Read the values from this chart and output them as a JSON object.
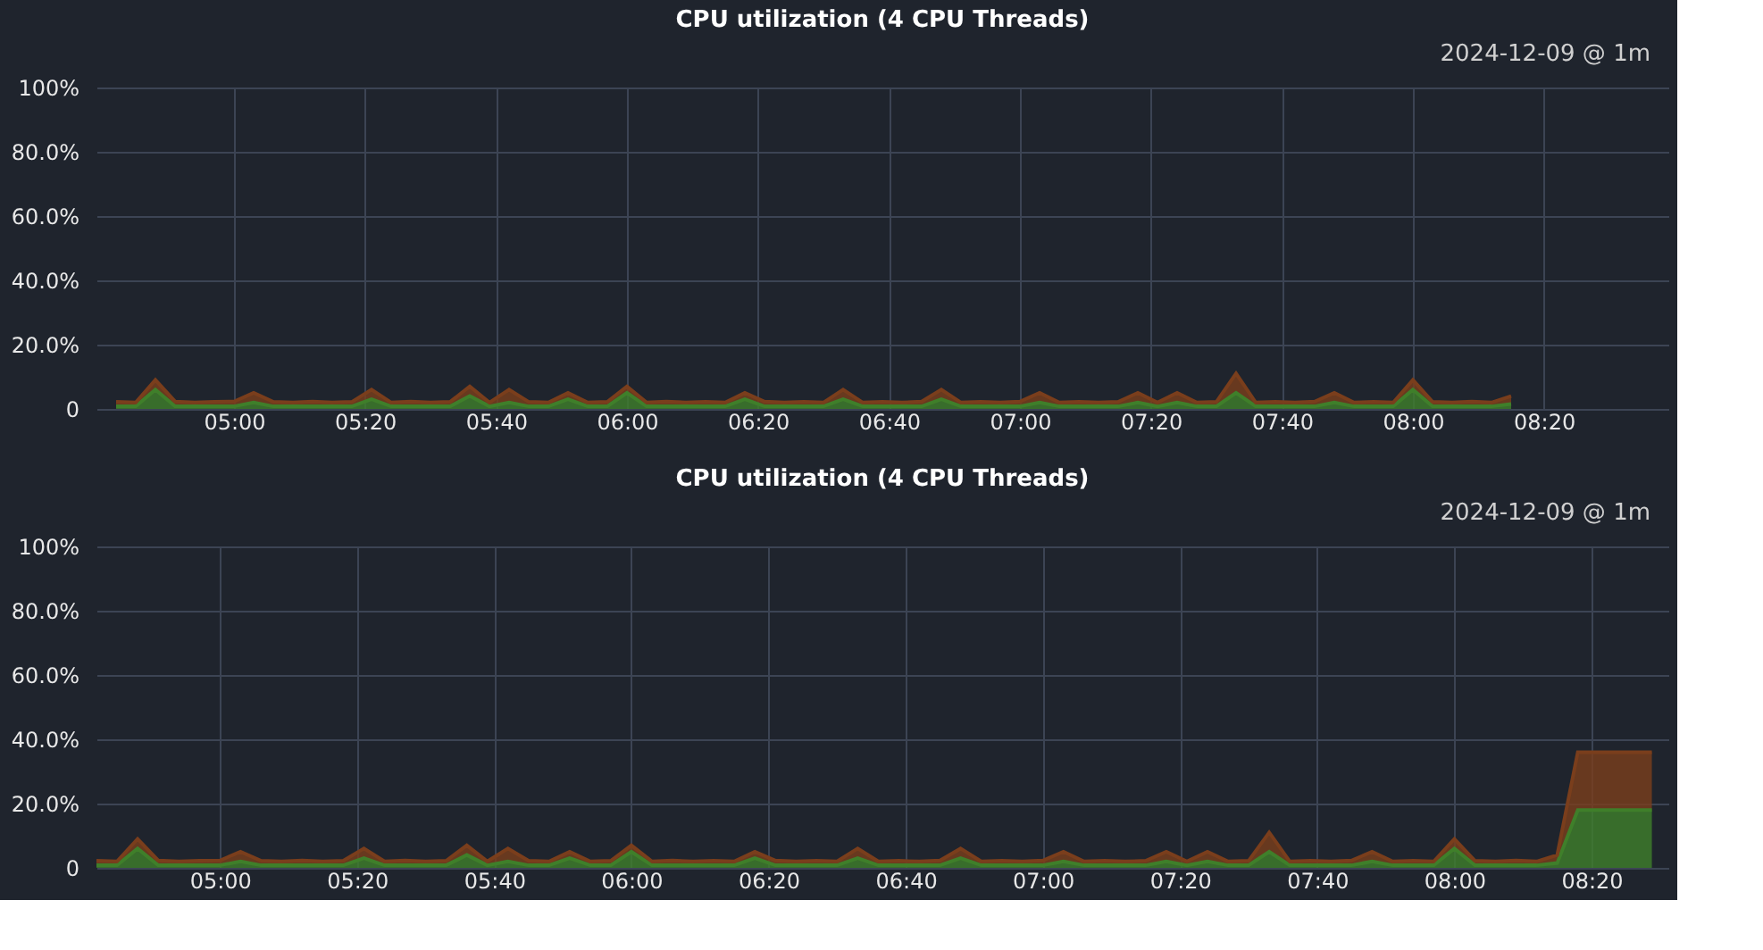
{
  "chart_data": [
    {
      "type": "area",
      "title": "CPU utilization (4 CPU Threads)",
      "annotations": [
        "2024-12-09 @ 1m"
      ],
      "stacked": true,
      "legend": false,
      "grid": true,
      "x": [
        4.7,
        4.75,
        4.8,
        4.85,
        4.9,
        4.95,
        5.0,
        5.05,
        5.1,
        5.15,
        5.2,
        5.25,
        5.3,
        5.35,
        5.4,
        5.45,
        5.5,
        5.55,
        5.6,
        5.65,
        5.7,
        5.75,
        5.8,
        5.85,
        5.9,
        5.95,
        6.0,
        6.05,
        6.1,
        6.15,
        6.2,
        6.25,
        6.3,
        6.35,
        6.4,
        6.45,
        6.5,
        6.55,
        6.6,
        6.65,
        6.7,
        6.75,
        6.8,
        6.85,
        6.9,
        6.95,
        7.0,
        7.05,
        7.1,
        7.15,
        7.2,
        7.25,
        7.3,
        7.35,
        7.4,
        7.45,
        7.5,
        7.55,
        7.6,
        7.65,
        7.7,
        7.75,
        7.8,
        7.85,
        7.9,
        7.95,
        8.0,
        8.05,
        8.1,
        8.15,
        8.2,
        8.25
      ],
      "series": [
        {
          "color": "#3f7f2a",
          "values": [
            0.8,
            0.8,
            6,
            0.8,
            0.8,
            0.8,
            0.8,
            2,
            0.8,
            0.8,
            0.8,
            0.8,
            0.8,
            3,
            0.8,
            0.8,
            0.8,
            0.8,
            4,
            0.8,
            2,
            0.8,
            0.8,
            3,
            0.8,
            0.8,
            5,
            0.8,
            0.8,
            0.8,
            0.8,
            0.8,
            3,
            0.8,
            0.8,
            0.8,
            0.8,
            3,
            0.8,
            0.8,
            0.8,
            0.8,
            3,
            0.8,
            0.8,
            0.8,
            0.8,
            2,
            0.8,
            0.8,
            0.8,
            0.8,
            2,
            0.8,
            2,
            0.8,
            0.8,
            5,
            0.8,
            0.8,
            0.8,
            0.8,
            2,
            0.8,
            0.8,
            0.8,
            6,
            0.8,
            0.8,
            0.8,
            0.8,
            1.5
          ]
        },
        {
          "color": "#7a3e1c",
          "values": [
            1.4,
            1.2,
            3,
            1.5,
            1.2,
            1.4,
            1.5,
            3,
            1.4,
            1.2,
            1.5,
            1.2,
            1.4,
            3,
            1.2,
            1.5,
            1.2,
            1.4,
            3,
            1.2,
            4,
            1.4,
            1.2,
            2,
            1.2,
            1.4,
            2,
            1.2,
            1.5,
            1.2,
            1.4,
            1.2,
            2,
            1.5,
            1.2,
            1.4,
            1.2,
            3,
            1.2,
            1.4,
            1.2,
            1.5,
            3,
            1.2,
            1.4,
            1.2,
            1.5,
            3,
            1.2,
            1.4,
            1.2,
            1.4,
            3,
            1.2,
            3,
            1.2,
            1.4,
            6,
            1.2,
            1.4,
            1.2,
            1.5,
            3,
            1.2,
            1.4,
            1.2,
            3,
            1.4,
            1.2,
            1.5,
            1.2,
            2.5
          ]
        }
      ],
      "xlim": [
        4.65,
        8.65
      ],
      "ylim": [
        0,
        100
      ],
      "xticks": [
        {
          "value": 5,
          "label": "05:00"
        },
        {
          "value": 5.3333,
          "label": "05:20"
        },
        {
          "value": 5.6667,
          "label": "05:40"
        },
        {
          "value": 6,
          "label": "06:00"
        },
        {
          "value": 6.3333,
          "label": "06:20"
        },
        {
          "value": 6.6667,
          "label": "06:40"
        },
        {
          "value": 7,
          "label": "07:00"
        },
        {
          "value": 7.3333,
          "label": "07:20"
        },
        {
          "value": 7.6667,
          "label": "07:40"
        },
        {
          "value": 8,
          "label": "08:00"
        },
        {
          "value": 8.3333,
          "label": "08:20"
        }
      ],
      "yticks": [
        {
          "value": 0,
          "label": "0"
        },
        {
          "value": 20,
          "label": "20.0%"
        },
        {
          "value": 40,
          "label": "40.0%"
        },
        {
          "value": 60,
          "label": "60.0%"
        },
        {
          "value": 80,
          "label": "80.0%"
        },
        {
          "value": 100,
          "label": "100%"
        }
      ]
    },
    {
      "type": "area",
      "title": "CPU utilization (4 CPU Threads)",
      "annotations": [
        "2024-12-09 @ 1m"
      ],
      "stacked": true,
      "legend": false,
      "grid": true,
      "x": [
        4.7,
        4.75,
        4.8,
        4.85,
        4.9,
        4.95,
        5.0,
        5.05,
        5.1,
        5.15,
        5.2,
        5.25,
        5.3,
        5.35,
        5.4,
        5.45,
        5.5,
        5.55,
        5.6,
        5.65,
        5.7,
        5.75,
        5.8,
        5.85,
        5.9,
        5.95,
        6.0,
        6.05,
        6.1,
        6.15,
        6.2,
        6.25,
        6.3,
        6.35,
        6.4,
        6.45,
        6.5,
        6.55,
        6.6,
        6.65,
        6.7,
        6.75,
        6.8,
        6.85,
        6.9,
        6.95,
        7.0,
        7.05,
        7.1,
        7.15,
        7.2,
        7.25,
        7.3,
        7.35,
        7.4,
        7.45,
        7.5,
        7.55,
        7.6,
        7.65,
        7.7,
        7.75,
        7.8,
        7.85,
        7.9,
        7.95,
        8.0,
        8.05,
        8.1,
        8.15,
        8.2,
        8.25,
        8.3,
        8.35,
        8.4,
        8.45,
        8.48
      ],
      "series": [
        {
          "color": "#3f7f2a",
          "values": [
            0.8,
            0.8,
            6,
            0.8,
            0.8,
            0.8,
            0.8,
            2,
            0.8,
            0.8,
            0.8,
            0.8,
            0.8,
            3,
            0.8,
            0.8,
            0.8,
            0.8,
            4,
            0.8,
            2,
            0.8,
            0.8,
            3,
            0.8,
            0.8,
            5,
            0.8,
            0.8,
            0.8,
            0.8,
            0.8,
            3,
            0.8,
            0.8,
            0.8,
            0.8,
            3,
            0.8,
            0.8,
            0.8,
            0.8,
            3,
            0.8,
            0.8,
            0.8,
            0.8,
            2,
            0.8,
            0.8,
            0.8,
            0.8,
            2,
            0.8,
            2,
            0.8,
            0.8,
            5,
            0.8,
            0.8,
            0.8,
            0.8,
            2,
            0.8,
            0.8,
            0.8,
            6,
            0.8,
            0.8,
            0.8,
            0.8,
            1.5,
            18,
            18,
            18,
            18,
            18
          ]
        },
        {
          "color": "#7a3e1c",
          "values": [
            1.4,
            1.2,
            3,
            1.5,
            1.2,
            1.4,
            1.5,
            3,
            1.4,
            1.2,
            1.5,
            1.2,
            1.4,
            3,
            1.2,
            1.5,
            1.2,
            1.4,
            3,
            1.2,
            4,
            1.4,
            1.2,
            2,
            1.2,
            1.4,
            2,
            1.2,
            1.5,
            1.2,
            1.4,
            1.2,
            2,
            1.5,
            1.2,
            1.4,
            1.2,
            3,
            1.2,
            1.4,
            1.2,
            1.5,
            3,
            1.2,
            1.4,
            1.2,
            1.5,
            3,
            1.2,
            1.4,
            1.2,
            1.4,
            3,
            1.2,
            3,
            1.2,
            1.4,
            6,
            1.2,
            1.4,
            1.2,
            1.5,
            3,
            1.2,
            1.4,
            1.2,
            3,
            1.4,
            1.2,
            1.5,
            1.2,
            2.5,
            18,
            18,
            18,
            18,
            18
          ]
        }
      ],
      "xlim": [
        4.7,
        8.52
      ],
      "ylim": [
        0,
        100
      ],
      "xticks": [
        {
          "value": 5,
          "label": "05:00"
        },
        {
          "value": 5.3333,
          "label": "05:20"
        },
        {
          "value": 5.6667,
          "label": "05:40"
        },
        {
          "value": 6,
          "label": "06:00"
        },
        {
          "value": 6.3333,
          "label": "06:20"
        },
        {
          "value": 6.6667,
          "label": "06:40"
        },
        {
          "value": 7,
          "label": "07:00"
        },
        {
          "value": 7.3333,
          "label": "07:20"
        },
        {
          "value": 7.6667,
          "label": "07:40"
        },
        {
          "value": 8,
          "label": "08:00"
        },
        {
          "value": 8.3333,
          "label": "08:20"
        }
      ],
      "yticks": [
        {
          "value": 0,
          "label": "0"
        },
        {
          "value": 20,
          "label": "20.0%"
        },
        {
          "value": 40,
          "label": "40.0%"
        },
        {
          "value": 60,
          "label": "60.0%"
        },
        {
          "value": 80,
          "label": "80.0%"
        },
        {
          "value": 100,
          "label": "100%"
        }
      ]
    }
  ]
}
